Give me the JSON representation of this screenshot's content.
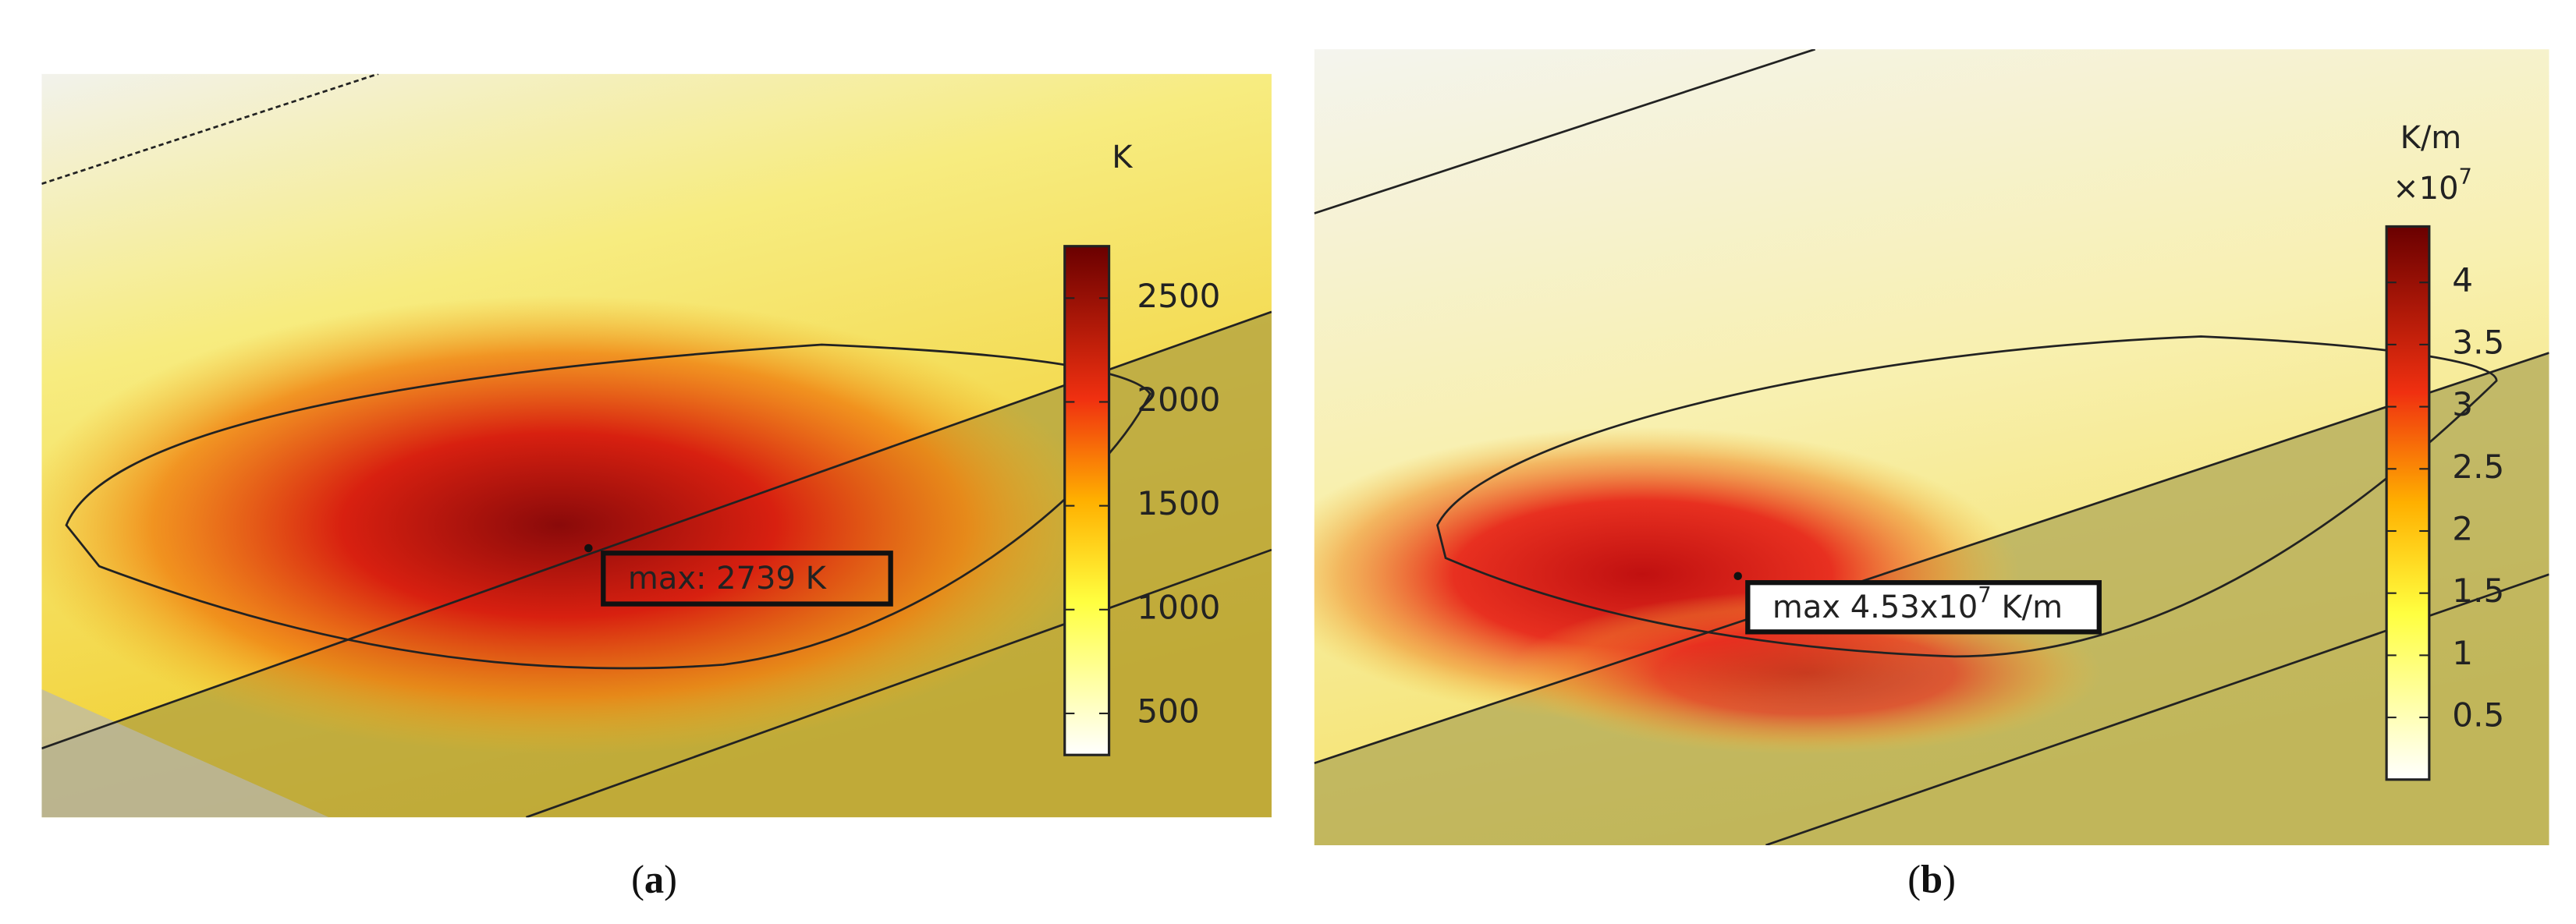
{
  "panels": [
    {
      "unit": "K",
      "colorbar": {
        "clim": [
          300,
          2750
        ],
        "ticks": [
          500,
          1000,
          1500,
          2000,
          2500
        ]
      },
      "annotation": {
        "text": "max: 2739 K"
      },
      "caption": {
        "open": "(",
        "label": "a",
        "close": ")"
      }
    },
    {
      "unit": "K/m",
      "multiplier": {
        "base": "×10",
        "exponent": "7"
      },
      "colorbar": {
        "clim": [
          0,
          4.45
        ],
        "ticks": [
          0.5,
          1,
          1.5,
          2,
          2.5,
          3,
          3.5,
          4
        ]
      },
      "annotation": {
        "text": "max 4.53x10",
        "exponent": "7",
        "suffix": " K/m"
      },
      "caption": {
        "open": "(",
        "label": "b",
        "close": ")"
      }
    }
  ]
}
